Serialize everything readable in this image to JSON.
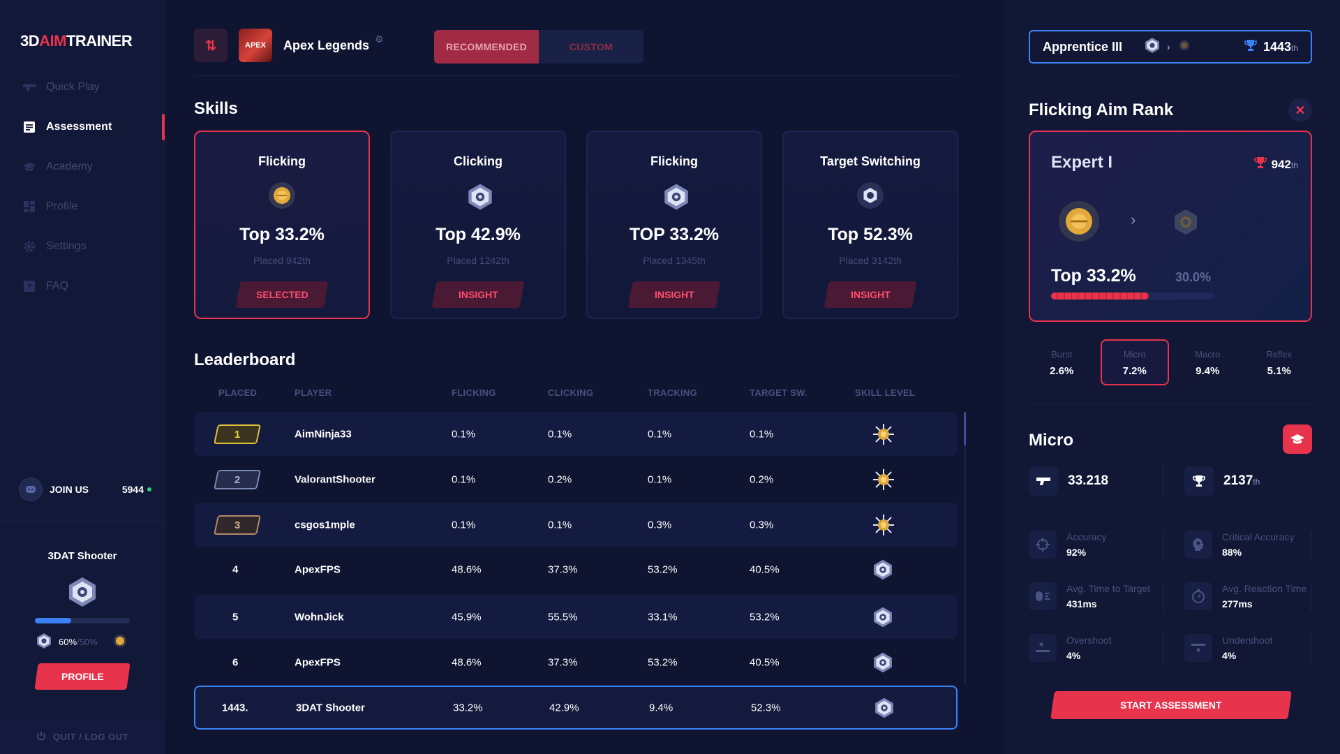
{
  "app": {
    "logo_3d": "3D",
    "logo_aim": "AIM",
    "logo_trainer": "TRAINER"
  },
  "sidebar": {
    "items": [
      {
        "label": "Quick Play",
        "icon": "gun-icon",
        "active": false
      },
      {
        "label": "Assessment",
        "icon": "document-icon",
        "active": true
      },
      {
        "label": "Academy",
        "icon": "graduation-cap-icon",
        "active": false
      },
      {
        "label": "Profile",
        "icon": "grid-icon",
        "active": false
      },
      {
        "label": "Settings",
        "icon": "gear-icon",
        "active": false
      },
      {
        "label": "FAQ",
        "icon": "question-icon",
        "active": false
      }
    ],
    "join_label": "JOIN US",
    "online_count": "5944",
    "user_name": "3DAT Shooter",
    "xp_percent": "60%",
    "xp_target": "/50%",
    "xp_fraction": 0.38,
    "profile_label": "PROFILE",
    "quit_label": "QUIT / LOG OUT"
  },
  "topbar": {
    "game_name": "Apex Legends",
    "game_thumb_text": "APEX",
    "tabs": [
      "RECOMMENDED",
      "CUSTOM"
    ],
    "active_tab": 0
  },
  "skills": {
    "title": "Skills",
    "cards": [
      {
        "name": "Flicking",
        "top": "Top 33.2%",
        "placed": "Placed 942th",
        "button": "SELECTED",
        "selected": true,
        "icon": "gold-rank-icon"
      },
      {
        "name": "Clicking",
        "top": "Top 42.9%",
        "placed": "Placed 1242th",
        "button": "INSIGHT",
        "selected": false,
        "icon": "silver-rank-icon"
      },
      {
        "name": "Flicking",
        "top": "TOP 33.2%",
        "placed": "Placed 1345th",
        "button": "INSIGHT",
        "selected": false,
        "icon": "silver-rank-icon"
      },
      {
        "name": "Target Switching",
        "top": "Top 52.3%",
        "placed": "Placed 3142th",
        "button": "INSIGHT",
        "selected": false,
        "icon": "hex-rank-icon"
      }
    ]
  },
  "leaderboard": {
    "title": "Leaderboard",
    "columns": [
      "PLACED",
      "PLAYER",
      "FLICKING",
      "CLICKING",
      "TRACKING",
      "TARGET SW.",
      "SKILL LEVEL"
    ],
    "rows": [
      {
        "place": "1",
        "player": "AimNinja33",
        "flicking": "0.1%",
        "clicking": "0.1%",
        "tracking": "0.1%",
        "target_sw": "0.1%",
        "level_icon": "sun-star-icon",
        "badge": "gold"
      },
      {
        "place": "2",
        "player": "ValorantShooter",
        "flicking": "0.1%",
        "clicking": "0.2%",
        "tracking": "0.1%",
        "target_sw": "0.2%",
        "level_icon": "sun-star-icon",
        "badge": "silver"
      },
      {
        "place": "3",
        "player": "csgos1mple",
        "flicking": "0.1%",
        "clicking": "0.1%",
        "tracking": "0.3%",
        "target_sw": "0.3%",
        "level_icon": "sun-star-icon",
        "badge": "bronze"
      },
      {
        "place": "4",
        "player": "ApexFPS",
        "flicking": "48.6%",
        "clicking": "37.3%",
        "tracking": "53.2%",
        "target_sw": "40.5%",
        "level_icon": "silver-rank-icon",
        "badge": "none"
      },
      {
        "place": "5",
        "player": "WohnJick",
        "flicking": "45.9%",
        "clicking": "55.5%",
        "tracking": "33.1%",
        "target_sw": "53.2%",
        "level_icon": "silver-rank-icon",
        "badge": "none"
      },
      {
        "place": "6",
        "player": "ApexFPS",
        "flicking": "48.6%",
        "clicking": "37.3%",
        "tracking": "53.2%",
        "target_sw": "40.5%",
        "level_icon": "silver-rank-icon",
        "badge": "none"
      },
      {
        "place": "1443.",
        "player": "3DAT Shooter",
        "flicking": "33.2%",
        "clicking": "42.9%",
        "tracking": "9.4%",
        "target_sw": "52.3%",
        "level_icon": "silver-rank-icon",
        "badge": "me"
      }
    ]
  },
  "right": {
    "rank_name": "Apprentice III",
    "rank_place": "1443",
    "rank_suffix": "th",
    "panel_title": "Flicking Aim Rank",
    "card": {
      "rank": "Expert I",
      "place": "942",
      "suffix": "th",
      "top": "Top 33.2%",
      "next": "30.0%",
      "progress": 0.6
    },
    "mini_tabs": [
      {
        "label": "Burst",
        "value": "2.6%"
      },
      {
        "label": "Micro",
        "value": "7.2%"
      },
      {
        "label": "Macro",
        "value": "9.4%"
      },
      {
        "label": "Reflex",
        "value": "5.1%"
      }
    ],
    "active_mini_tab": 1,
    "micro_title": "Micro",
    "micro_score": "33.218",
    "micro_place": "2137",
    "micro_suffix": "th",
    "metrics": [
      {
        "label": "Accuracy",
        "value": "92%",
        "icon": "crosshair-icon"
      },
      {
        "label": "Critical Accuracy",
        "value": "88%",
        "icon": "head-target-icon"
      },
      {
        "label": "Avg. Time to Target",
        "value": "431ms",
        "icon": "mouse-speed-icon"
      },
      {
        "label": "Avg. Reaction Time",
        "value": "277ms",
        "icon": "stopwatch-icon"
      },
      {
        "label": "Overshoot",
        "value": "4%",
        "icon": "overshoot-icon"
      },
      {
        "label": "Undershoot",
        "value": "4%",
        "icon": "undershoot-icon"
      }
    ],
    "start_label": "START ASSESSMENT"
  },
  "colors": {
    "accent": "#e8334c",
    "blue": "#3b82f6",
    "bg": "#0f1430",
    "gold": "#e0a93a"
  }
}
